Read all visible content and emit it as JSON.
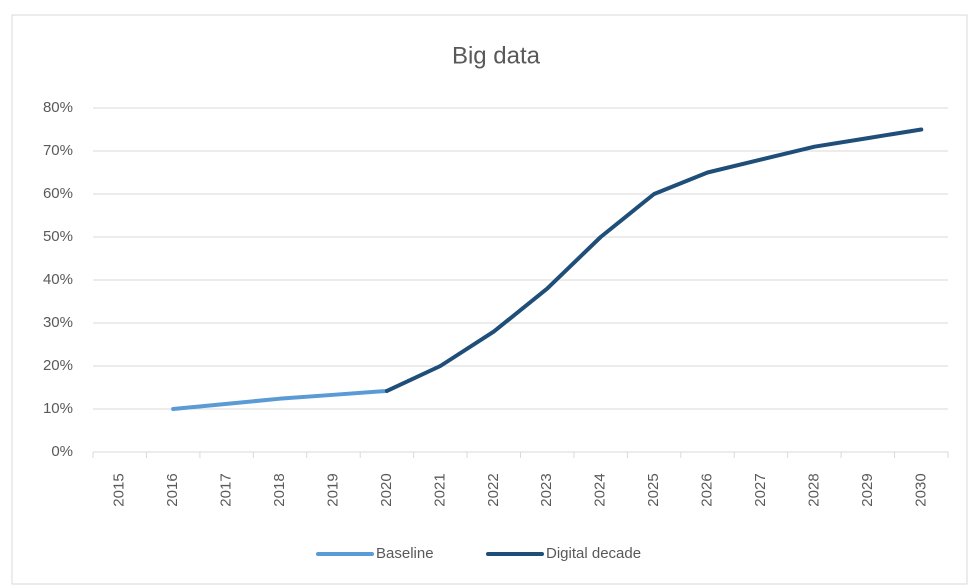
{
  "chart_data": {
    "type": "line",
    "title": "Big data",
    "categories": [
      "2015",
      "2016",
      "2017",
      "2018",
      "2019",
      "2020",
      "2021",
      "2022",
      "2023",
      "2024",
      "2025",
      "2026",
      "2027",
      "2028",
      "2029",
      "2030"
    ],
    "series": [
      {
        "name": "Baseline",
        "color": "#5b9bd5",
        "values": [
          null,
          10,
          11.2,
          12.4,
          13.3,
          14.2,
          null,
          null,
          null,
          null,
          null,
          null,
          null,
          null,
          null,
          null
        ]
      },
      {
        "name": "Digital decade",
        "color": "#1f4e79",
        "values": [
          null,
          null,
          null,
          null,
          null,
          14.2,
          20,
          28,
          38,
          50,
          60,
          65,
          68,
          71,
          73,
          75
        ]
      }
    ],
    "ylim": [
      0,
      80
    ],
    "yticks": [
      {
        "value": 0,
        "label": "0%"
      },
      {
        "value": 10,
        "label": "10%"
      },
      {
        "value": 20,
        "label": "20%"
      },
      {
        "value": 30,
        "label": "30%"
      },
      {
        "value": 40,
        "label": "40%"
      },
      {
        "value": 50,
        "label": "50%"
      },
      {
        "value": 60,
        "label": "60%"
      },
      {
        "value": 70,
        "label": "70%"
      },
      {
        "value": 80,
        "label": "80%"
      }
    ],
    "grid": true,
    "legend": "bottom"
  }
}
